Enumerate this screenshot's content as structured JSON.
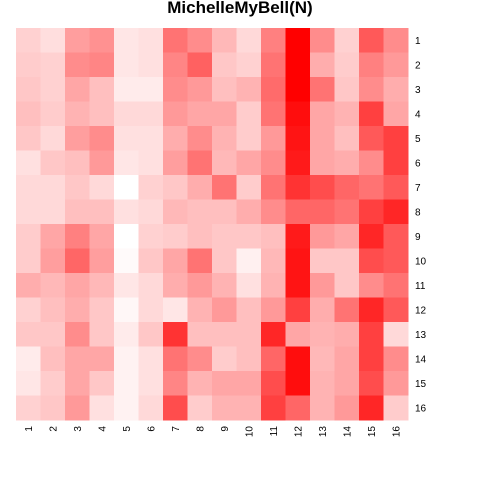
{
  "chart_data": {
    "type": "heatmap",
    "title": "MichelleMyBell(N)",
    "xlabel": "",
    "ylabel": "",
    "x_labels": [
      "1",
      "2",
      "3",
      "4",
      "5",
      "6",
      "7",
      "8",
      "9",
      "10",
      "11",
      "12",
      "13",
      "14",
      "15",
      "16"
    ],
    "y_labels": [
      "1",
      "2",
      "3",
      "4",
      "5",
      "6",
      "7",
      "8",
      "9",
      "10",
      "11",
      "12",
      "13",
      "14",
      "15",
      "16"
    ],
    "color_low": "#ffffff",
    "color_high": "#ff0000",
    "value_range": [
      0,
      1
    ],
    "grid": false,
    "legend": "none",
    "values": [
      [
        0.18,
        0.13,
        0.38,
        0.43,
        0.1,
        0.12,
        0.55,
        0.45,
        0.28,
        0.15,
        0.5,
        1.0,
        0.45,
        0.18,
        0.65,
        0.45
      ],
      [
        0.2,
        0.18,
        0.45,
        0.48,
        0.1,
        0.12,
        0.48,
        0.62,
        0.22,
        0.18,
        0.55,
        1.0,
        0.32,
        0.2,
        0.5,
        0.4
      ],
      [
        0.22,
        0.18,
        0.35,
        0.25,
        0.08,
        0.08,
        0.45,
        0.4,
        0.25,
        0.3,
        0.58,
        1.0,
        0.55,
        0.22,
        0.45,
        0.32
      ],
      [
        0.25,
        0.2,
        0.3,
        0.25,
        0.15,
        0.15,
        0.4,
        0.35,
        0.35,
        0.2,
        0.55,
        0.95,
        0.35,
        0.3,
        0.75,
        0.35
      ],
      [
        0.22,
        0.15,
        0.38,
        0.45,
        0.12,
        0.12,
        0.32,
        0.45,
        0.3,
        0.2,
        0.4,
        0.92,
        0.35,
        0.25,
        0.65,
        0.75
      ],
      [
        0.12,
        0.22,
        0.25,
        0.4,
        0.1,
        0.12,
        0.38,
        0.55,
        0.28,
        0.35,
        0.45,
        0.9,
        0.35,
        0.32,
        0.45,
        0.75
      ],
      [
        0.15,
        0.15,
        0.22,
        0.15,
        0.0,
        0.18,
        0.22,
        0.32,
        0.55,
        0.2,
        0.55,
        0.8,
        0.7,
        0.6,
        0.55,
        0.65
      ],
      [
        0.15,
        0.15,
        0.25,
        0.25,
        0.12,
        0.15,
        0.28,
        0.25,
        0.25,
        0.32,
        0.45,
        0.6,
        0.6,
        0.55,
        0.75,
        0.85
      ],
      [
        0.2,
        0.35,
        0.5,
        0.35,
        0.0,
        0.18,
        0.2,
        0.25,
        0.22,
        0.22,
        0.25,
        0.9,
        0.4,
        0.35,
        0.85,
        0.65
      ],
      [
        0.2,
        0.38,
        0.6,
        0.38,
        0.02,
        0.22,
        0.35,
        0.55,
        0.22,
        0.06,
        0.28,
        0.92,
        0.22,
        0.22,
        0.7,
        0.65
      ],
      [
        0.32,
        0.28,
        0.35,
        0.28,
        0.1,
        0.15,
        0.32,
        0.4,
        0.3,
        0.12,
        0.3,
        0.92,
        0.4,
        0.22,
        0.45,
        0.55
      ],
      [
        0.18,
        0.25,
        0.32,
        0.22,
        0.03,
        0.15,
        0.1,
        0.3,
        0.4,
        0.25,
        0.4,
        0.75,
        0.32,
        0.55,
        0.85,
        0.65
      ],
      [
        0.22,
        0.22,
        0.45,
        0.22,
        0.08,
        0.22,
        0.8,
        0.25,
        0.25,
        0.25,
        0.85,
        0.35,
        0.3,
        0.32,
        0.75,
        0.15
      ],
      [
        0.08,
        0.25,
        0.35,
        0.35,
        0.05,
        0.12,
        0.55,
        0.45,
        0.2,
        0.25,
        0.6,
        0.95,
        0.28,
        0.35,
        0.75,
        0.45
      ],
      [
        0.1,
        0.2,
        0.35,
        0.22,
        0.05,
        0.12,
        0.48,
        0.3,
        0.35,
        0.35,
        0.7,
        0.95,
        0.3,
        0.35,
        0.7,
        0.4
      ],
      [
        0.18,
        0.22,
        0.4,
        0.12,
        0.05,
        0.15,
        0.7,
        0.2,
        0.3,
        0.3,
        0.75,
        0.6,
        0.3,
        0.4,
        0.85,
        0.2
      ]
    ]
  }
}
